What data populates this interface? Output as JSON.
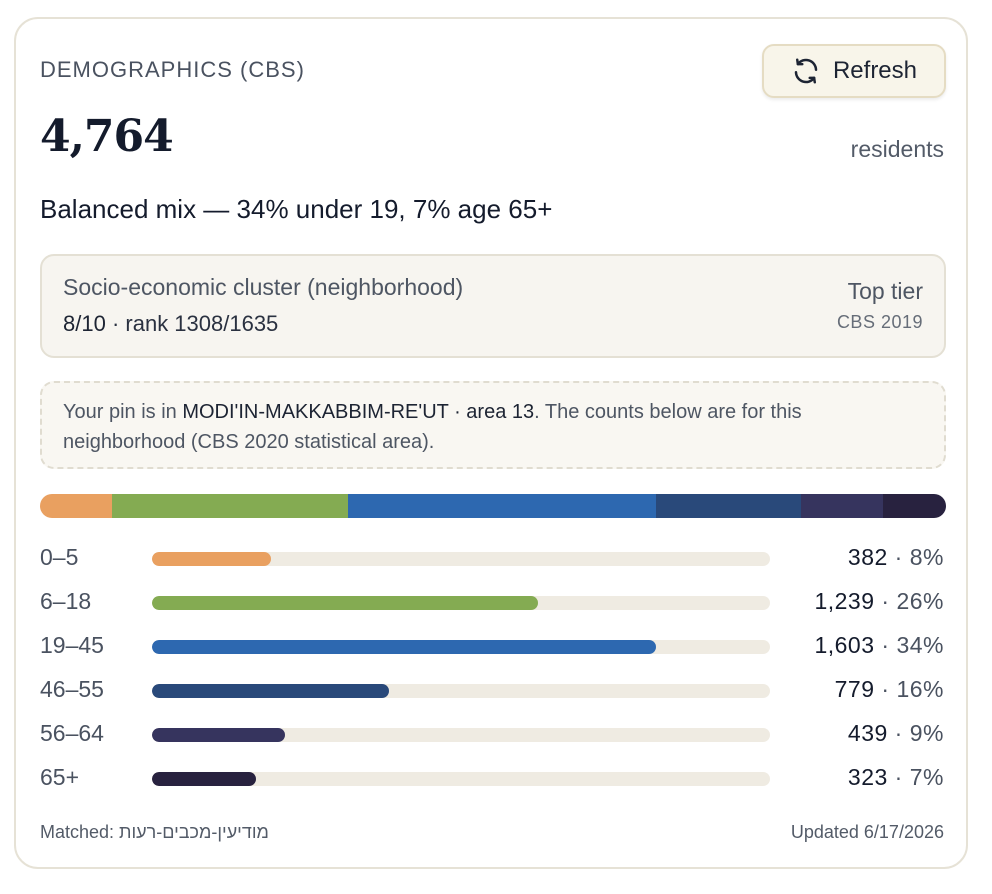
{
  "header": {
    "title": "DEMOGRAPHICS (CBS)",
    "refresh_label": "Refresh"
  },
  "population": {
    "count": "4,764",
    "unit": "residents",
    "summary": "Balanced mix — 34% under 19, 7% age 65+"
  },
  "cluster": {
    "label": "Socio-economic cluster (neighborhood)",
    "score": "8/10",
    "rank": "· rank 1308/1635",
    "tier": "Top tier",
    "source": "CBS 2019"
  },
  "note": {
    "prefix": "Your pin is in ",
    "area_name": "MODI'IN-MAKKABBIM-RE'UT · area 13",
    "suffix": ". The counts below are for this neighborhood (CBS 2020 statistical area)."
  },
  "age_groups": [
    {
      "label": "0–5",
      "count": "382",
      "pct_label": "8%",
      "share": 0.08,
      "color": "#e9a060"
    },
    {
      "label": "6–18",
      "count": "1,239",
      "pct_label": "26%",
      "share": 0.26,
      "color": "#84ab52"
    },
    {
      "label": "19–45",
      "count": "1,603",
      "pct_label": "34%",
      "share": 0.34,
      "color": "#2d68b0"
    },
    {
      "label": "46–55",
      "count": "779",
      "pct_label": "16%",
      "share": 0.16,
      "color": "#29497a"
    },
    {
      "label": "56–64",
      "count": "439",
      "pct_label": "9%",
      "share": 0.09,
      "color": "#36345e"
    },
    {
      "label": "65+",
      "count": "323",
      "pct_label": "7%",
      "share": 0.07,
      "color": "#28223f"
    }
  ],
  "bar_scale_max_share": 1.0,
  "footer": {
    "matched": "Matched: מודיעין-מכבים-רעות",
    "updated": "Updated 6/17/2026"
  },
  "icons": {
    "refresh": "refresh-icon"
  }
}
